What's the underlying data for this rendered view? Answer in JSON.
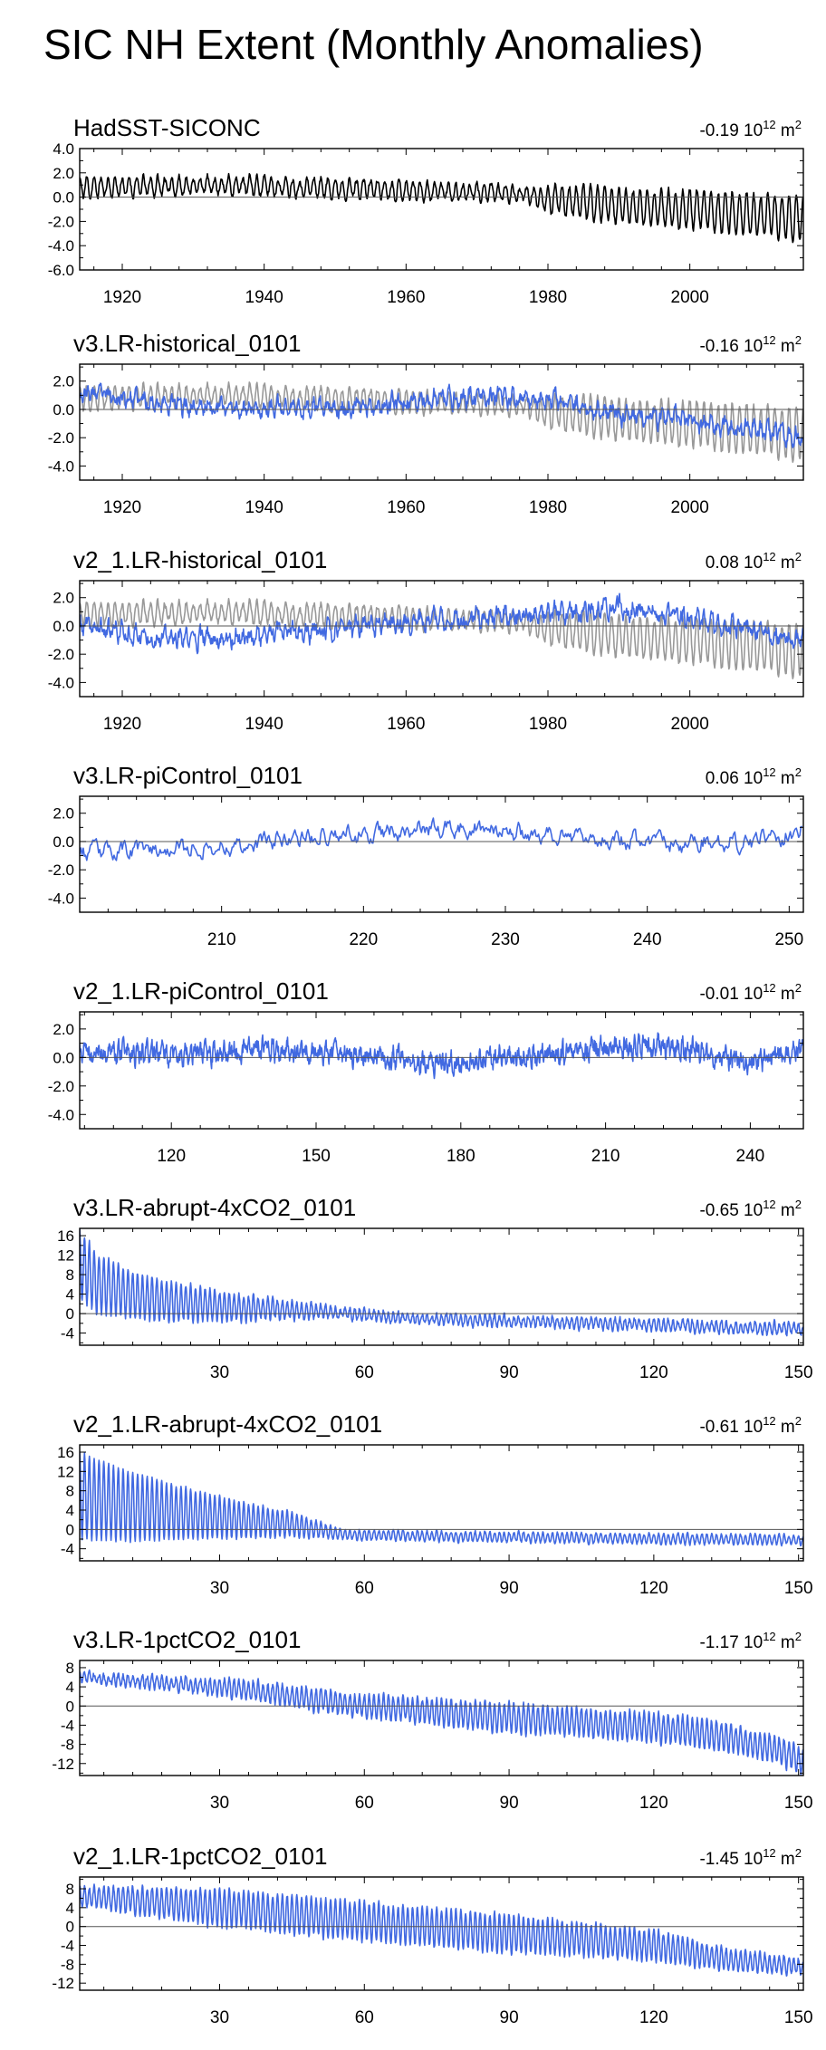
{
  "page_title": "SIC NH Extent (Monthly Anomalies)",
  "colors": {
    "obs": "#000000",
    "model": "#4169e1",
    "obs_overlay": "#999999",
    "axis": "#000000"
  },
  "chart_data": [
    {
      "type": "line",
      "title": "HadSST-SICONC",
      "mean_label": "-0.19",
      "units": {
        "base": "10",
        "exp": "12",
        "unit": "m",
        "unit_exp": "2"
      },
      "x_range": [
        1914,
        2016
      ],
      "y_range": [
        -6,
        4
      ],
      "y_ticks": [
        4,
        2,
        0,
        -2,
        -4,
        -6
      ],
      "y_tick_labels": [
        "4.0",
        "2.0",
        "0.0",
        "-2.0",
        "-4.0",
        "-6.0"
      ],
      "x_ticks": [
        1920,
        1940,
        1960,
        1980,
        2000
      ],
      "x_tick_labels": [
        "1920",
        "1940",
        "1960",
        "1980",
        "2000"
      ],
      "series": [
        {
          "name": "HadSST-SICONC",
          "color": "#000000",
          "seed": 11,
          "trend": [
            [
              1914,
              0.8
            ],
            [
              1935,
              1.0
            ],
            [
              1955,
              0.7
            ],
            [
              1975,
              0.3
            ],
            [
              1990,
              -0.8
            ],
            [
              2000,
              -1.0
            ],
            [
              2016,
              -1.8
            ]
          ],
          "seasonal": [
            [
              1914,
              0.8
            ],
            [
              1978,
              0.6
            ],
            [
              1980,
              1.2
            ],
            [
              2016,
              1.9
            ]
          ],
          "noise": 0.25,
          "months": 1224
        }
      ]
    },
    {
      "type": "line",
      "title": "v3.LR-historical_0101",
      "mean_label": "-0.16",
      "units": {
        "base": "10",
        "exp": "12",
        "unit": "m",
        "unit_exp": "2"
      },
      "x_range": [
        1914,
        2016
      ],
      "y_range": [
        -5,
        3.2
      ],
      "y_ticks": [
        2,
        0,
        -2,
        -4
      ],
      "y_tick_labels": [
        "2.0",
        "0.0",
        "-2.0",
        "-4.0"
      ],
      "x_ticks": [
        1920,
        1940,
        1960,
        1980,
        2000
      ],
      "x_tick_labels": [
        "1920",
        "1940",
        "1960",
        "1980",
        "2000"
      ],
      "series": [
        {
          "name": "HadSST-SICONC",
          "color": "#999999",
          "seed": 11,
          "trend": [
            [
              1914,
              0.8
            ],
            [
              1935,
              1.0
            ],
            [
              1955,
              0.7
            ],
            [
              1975,
              0.3
            ],
            [
              1990,
              -0.8
            ],
            [
              2000,
              -1.0
            ],
            [
              2016,
              -1.8
            ]
          ],
          "seasonal": [
            [
              1914,
              0.8
            ],
            [
              1978,
              0.6
            ],
            [
              1980,
              1.2
            ],
            [
              2016,
              1.9
            ]
          ],
          "noise": 0.25,
          "months": 1224
        },
        {
          "name": "v3.LR-historical_0101",
          "color": "#4169e1",
          "seed": 23,
          "trend": [
            [
              1914,
              1.2
            ],
            [
              1930,
              0.2
            ],
            [
              1950,
              0.0
            ],
            [
              1965,
              0.8
            ],
            [
              1978,
              0.8
            ],
            [
              1990,
              -0.3
            ],
            [
              2000,
              -0.8
            ],
            [
              2016,
              -2.0
            ]
          ],
          "seasonal": [
            [
              1914,
              0.3
            ],
            [
              2016,
              0.4
            ]
          ],
          "noise": 0.45,
          "months": 1224
        }
      ]
    },
    {
      "type": "line",
      "title": "v2_1.LR-historical_0101",
      "mean_label": "0.08",
      "units": {
        "base": "10",
        "exp": "12",
        "unit": "m",
        "unit_exp": "2"
      },
      "x_range": [
        1914,
        2016
      ],
      "y_range": [
        -5,
        3.2
      ],
      "y_ticks": [
        2,
        0,
        -2,
        -4
      ],
      "y_tick_labels": [
        "2.0",
        "0.0",
        "-2.0",
        "-4.0"
      ],
      "x_ticks": [
        1920,
        1940,
        1960,
        1980,
        2000
      ],
      "x_tick_labels": [
        "1920",
        "1940",
        "1960",
        "1980",
        "2000"
      ],
      "series": [
        {
          "name": "HadSST-SICONC",
          "color": "#999999",
          "seed": 11,
          "trend": [
            [
              1914,
              0.8
            ],
            [
              1935,
              1.0
            ],
            [
              1955,
              0.7
            ],
            [
              1975,
              0.3
            ],
            [
              1990,
              -0.8
            ],
            [
              2000,
              -1.0
            ],
            [
              2016,
              -1.8
            ]
          ],
          "seasonal": [
            [
              1914,
              0.8
            ],
            [
              1978,
              0.6
            ],
            [
              1980,
              1.2
            ],
            [
              2016,
              1.9
            ]
          ],
          "noise": 0.25,
          "months": 1224
        },
        {
          "name": "v2_1.LR-historical_0101",
          "color": "#4169e1",
          "seed": 37,
          "trend": [
            [
              1914,
              0.0
            ],
            [
              1928,
              -1.0
            ],
            [
              1945,
              -0.5
            ],
            [
              1960,
              0.2
            ],
            [
              1975,
              0.7
            ],
            [
              1990,
              1.3
            ],
            [
              2000,
              0.5
            ],
            [
              2016,
              -1.0
            ]
          ],
          "seasonal": [
            [
              1914,
              0.3
            ],
            [
              2016,
              0.4
            ]
          ],
          "noise": 0.5,
          "months": 1224
        }
      ]
    },
    {
      "type": "line",
      "title": "v3.LR-piControl_0101",
      "mean_label": "0.06",
      "units": {
        "base": "10",
        "exp": "12",
        "unit": "m",
        "unit_exp": "2"
      },
      "x_range": [
        200,
        251
      ],
      "y_range": [
        -5,
        3.2
      ],
      "y_ticks": [
        2,
        0,
        -2,
        -4
      ],
      "y_tick_labels": [
        "2.0",
        "0.0",
        "-2.0",
        "-4.0"
      ],
      "x_ticks": [
        210,
        220,
        230,
        240,
        250
      ],
      "x_tick_labels": [
        "210",
        "220",
        "230",
        "240",
        "250"
      ],
      "series": [
        {
          "name": "v3.LR-piControl_0101",
          "color": "#4169e1",
          "seed": 53,
          "trend": [
            [
              200,
              -0.7
            ],
            [
              210,
              -0.4
            ],
            [
              215,
              0.3
            ],
            [
              226,
              0.9
            ],
            [
              235,
              0.3
            ],
            [
              245,
              -0.2
            ],
            [
              251,
              0.6
            ]
          ],
          "seasonal": [
            [
              200,
              0.2
            ],
            [
              251,
              0.2
            ]
          ],
          "noise": 0.45,
          "months": 612
        }
      ]
    },
    {
      "type": "line",
      "title": "v2_1.LR-piControl_0101",
      "mean_label": "-0.01",
      "units": {
        "base": "10",
        "exp": "12",
        "unit": "m",
        "unit_exp": "2"
      },
      "x_range": [
        101,
        251
      ],
      "y_range": [
        -5,
        3.2
      ],
      "y_ticks": [
        2,
        0,
        -2,
        -4
      ],
      "y_tick_labels": [
        "2.0",
        "0.0",
        "-2.0",
        "-4.0"
      ],
      "x_ticks": [
        120,
        150,
        180,
        210,
        240
      ],
      "x_tick_labels": [
        "120",
        "150",
        "180",
        "210",
        "240"
      ],
      "series": [
        {
          "name": "v2_1.LR-piControl_0101",
          "color": "#4169e1",
          "seed": 71,
          "trend": [
            [
              101,
              0.4
            ],
            [
              125,
              0.2
            ],
            [
              140,
              0.6
            ],
            [
              160,
              0.2
            ],
            [
              175,
              -0.4
            ],
            [
              195,
              0.2
            ],
            [
              222,
              0.9
            ],
            [
              240,
              -0.4
            ],
            [
              251,
              0.6
            ]
          ],
          "seasonal": [
            [
              101,
              0.25
            ],
            [
              251,
              0.25
            ]
          ],
          "noise": 0.55,
          "months": 1800
        }
      ]
    },
    {
      "type": "line",
      "title": "v3.LR-abrupt-4xCO2_0101",
      "mean_label": "-0.65",
      "units": {
        "base": "10",
        "exp": "12",
        "unit": "m",
        "unit_exp": "2"
      },
      "x_range": [
        1,
        151
      ],
      "y_range": [
        -6.5,
        17.5
      ],
      "y_ticks": [
        16,
        12,
        8,
        4,
        0,
        -4
      ],
      "y_tick_labels": [
        "16",
        "12",
        "8",
        "4",
        "0",
        "-4"
      ],
      "x_ticks": [
        30,
        60,
        90,
        120,
        150
      ],
      "x_tick_labels": [
        "30",
        "60",
        "90",
        "120",
        "150"
      ],
      "series": [
        {
          "name": "v3.LR-abrupt-4xCO2_0101",
          "color": "#4169e1",
          "seed": 89,
          "trend": [
            [
              1,
              10.0
            ],
            [
              5,
              6.0
            ],
            [
              15,
              3.0
            ],
            [
              30,
              1.5
            ],
            [
              50,
              0.5
            ],
            [
              70,
              -1.0
            ],
            [
              100,
              -1.8
            ],
            [
              151,
              -3.2
            ]
          ],
          "seasonal": [
            [
              1,
              7.0
            ],
            [
              10,
              5.0
            ],
            [
              30,
              3.0
            ],
            [
              55,
              1.0
            ],
            [
              151,
              1.1
            ]
          ],
          "noise": 0.45,
          "months": 1800
        }
      ]
    },
    {
      "type": "line",
      "title": "v2_1.LR-abrupt-4xCO2_0101",
      "mean_label": "-0.61",
      "units": {
        "base": "10",
        "exp": "12",
        "unit": "m",
        "unit_exp": "2"
      },
      "x_range": [
        1,
        151
      ],
      "y_range": [
        -6.5,
        17.5
      ],
      "y_ticks": [
        16,
        12,
        8,
        4,
        0,
        -4
      ],
      "y_tick_labels": [
        "16",
        "12",
        "8",
        "4",
        "0",
        "-4"
      ],
      "x_ticks": [
        30,
        60,
        90,
        120,
        150
      ],
      "x_tick_labels": [
        "30",
        "60",
        "90",
        "120",
        "150"
      ],
      "series": [
        {
          "name": "v2_1.LR-abrupt-4xCO2_0101",
          "color": "#4169e1",
          "seed": 97,
          "trend": [
            [
              1,
              7.0
            ],
            [
              10,
              5.0
            ],
            [
              25,
              3.0
            ],
            [
              45,
              1.0
            ],
            [
              55,
              -1.0
            ],
            [
              80,
              -1.5
            ],
            [
              151,
              -2.2
            ]
          ],
          "seasonal": [
            [
              1,
              9.0
            ],
            [
              10,
              7.5
            ],
            [
              25,
              5.0
            ],
            [
              45,
              2.5
            ],
            [
              55,
              1.0
            ],
            [
              151,
              1.0
            ]
          ],
          "noise": 0.25,
          "months": 1800
        }
      ]
    },
    {
      "type": "line",
      "title": "v3.LR-1pctCO2_0101",
      "mean_label": "-1.17",
      "units": {
        "base": "10",
        "exp": "12",
        "unit": "m",
        "unit_exp": "2"
      },
      "x_range": [
        1,
        151
      ],
      "y_range": [
        -14.5,
        9.5
      ],
      "y_ticks": [
        8,
        4,
        0,
        -4,
        -8,
        -12
      ],
      "y_tick_labels": [
        "8",
        "4",
        "0",
        "-4",
        "-8",
        "-12"
      ],
      "x_ticks": [
        30,
        60,
        90,
        120,
        150
      ],
      "x_tick_labels": [
        "30",
        "60",
        "90",
        "120",
        "150"
      ],
      "series": [
        {
          "name": "v3.LR-1pctCO2_0101",
          "color": "#4169e1",
          "seed": 113,
          "trend": [
            [
              1,
              6.0
            ],
            [
              30,
              4.0
            ],
            [
              60,
              0.0
            ],
            [
              90,
              -2.5
            ],
            [
              120,
              -4.5
            ],
            [
              135,
              -6.5
            ],
            [
              145,
              -9.0
            ],
            [
              151,
              -11.5
            ]
          ],
          "seasonal": [
            [
              1,
              0.8
            ],
            [
              40,
              2.0
            ],
            [
              90,
              3.0
            ],
            [
              130,
              3.0
            ],
            [
              151,
              2.5
            ]
          ],
          "noise": 0.5,
          "months": 1800
        }
      ]
    },
    {
      "type": "line",
      "title": "v2_1.LR-1pctCO2_0101",
      "mean_label": "-1.45",
      "units": {
        "base": "10",
        "exp": "12",
        "unit": "m",
        "unit_exp": "2"
      },
      "x_range": [
        1,
        151
      ],
      "y_range": [
        -13.5,
        10.5
      ],
      "y_ticks": [
        8,
        4,
        0,
        -4,
        -8,
        -12
      ],
      "y_tick_labels": [
        "8",
        "4",
        "0",
        "-4",
        "-8",
        "-12"
      ],
      "x_ticks": [
        30,
        60,
        90,
        120,
        150
      ],
      "x_tick_labels": [
        "30",
        "60",
        "90",
        "120",
        "150"
      ],
      "series": [
        {
          "name": "v2_1.LR-1pctCO2_0101",
          "color": "#4169e1",
          "seed": 131,
          "trend": [
            [
              1,
              6.5
            ],
            [
              30,
              4.0
            ],
            [
              60,
              1.0
            ],
            [
              90,
              -1.5
            ],
            [
              120,
              -4.0
            ],
            [
              135,
              -7.0
            ],
            [
              151,
              -8.5
            ]
          ],
          "seasonal": [
            [
              1,
              2.0
            ],
            [
              30,
              4.0
            ],
            [
              90,
              4.0
            ],
            [
              125,
              3.0
            ],
            [
              151,
              1.5
            ]
          ],
          "noise": 0.45,
          "months": 1800
        }
      ]
    }
  ]
}
